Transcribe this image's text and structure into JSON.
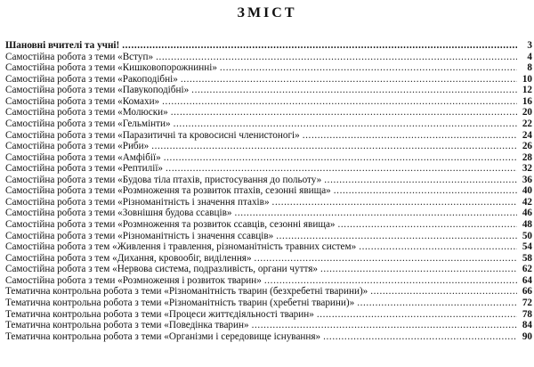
{
  "title": "ЗМІСТ",
  "items": [
    {
      "text": "Шановні вчителі та учні!",
      "page": "3"
    },
    {
      "text": "Самостійна робота з теми «Вступ»",
      "page": "4"
    },
    {
      "text": "Самостійна робота з теми «Кишковопорожнинні»",
      "page": "8"
    },
    {
      "text": "Самостійна робота з теми «Ракоподібні»",
      "page": "10"
    },
    {
      "text": "Самостійна робота з теми «Павукоподібні»",
      "page": "12"
    },
    {
      "text": "Самостійна робота з теми «Комахи»",
      "page": "16"
    },
    {
      "text": "Самостійна робота з теми «Молюски»",
      "page": "20"
    },
    {
      "text": "Самостійна робота з теми «Гельмінти»",
      "page": "22"
    },
    {
      "text": "Самостійна робота з теми «Паразитичні та кровосисні членистоногі»",
      "page": "24"
    },
    {
      "text": "Самостійна робота з теми «Риби»",
      "page": "26"
    },
    {
      "text": "Самостійна робота з теми «Амфібії»",
      "page": "28"
    },
    {
      "text": "Самостійна робота з теми «Рептилії»",
      "page": "32"
    },
    {
      "text": "Самостійна робота з теми «Будова тіла птахів, пристосування до польоту»",
      "page": "36"
    },
    {
      "text": "Самостійна робота з теми «Розмноження та розвиток птахів, сезонні явища»",
      "page": "40"
    },
    {
      "text": "Самостійна робота з теми «Різноманітність і значення птахів»",
      "page": "42"
    },
    {
      "text": "Самостійна робота з теми «Зовнішня будова ссавців»",
      "page": "46"
    },
    {
      "text": "Самостійна робота з теми «Розмноження та розвиток ссавців, сезонні явища»",
      "page": "48"
    },
    {
      "text": "Самостійна робота з теми «Різноманітність і значення ссавців»",
      "page": "50"
    },
    {
      "text": "Самостійна робота з тем «Живлення і травлення, різноманітність травних систем»",
      "page": "54"
    },
    {
      "text": "Самостійна робота з тем «Дихання, кровообіг, виділення»",
      "page": "58"
    },
    {
      "text": "Самостійна робота з тем «Нервова система, подразливість, органи чуття»",
      "page": "62"
    },
    {
      "text": "Самостійна робота з теми «Розмноження і розвиток тварин»",
      "page": "64"
    },
    {
      "text": "Тематична контрольна робота з теми «Різноманітність тварин (безхребетні тварини)»",
      "page": "66"
    },
    {
      "text": "Тематична контрольна робота з теми «Різноманітність тварин (хребетні тварини)»",
      "page": "72"
    },
    {
      "text": "Тематична контрольна робота з теми «Процеси життєдіяльності тварин»",
      "page": "78"
    },
    {
      "text": "Тематична контрольна робота з теми «Поведінка тварин»",
      "page": "84"
    },
    {
      "text": "Тематична контрольна робота з теми «Організми і середовище існування»",
      "page": "90"
    }
  ]
}
